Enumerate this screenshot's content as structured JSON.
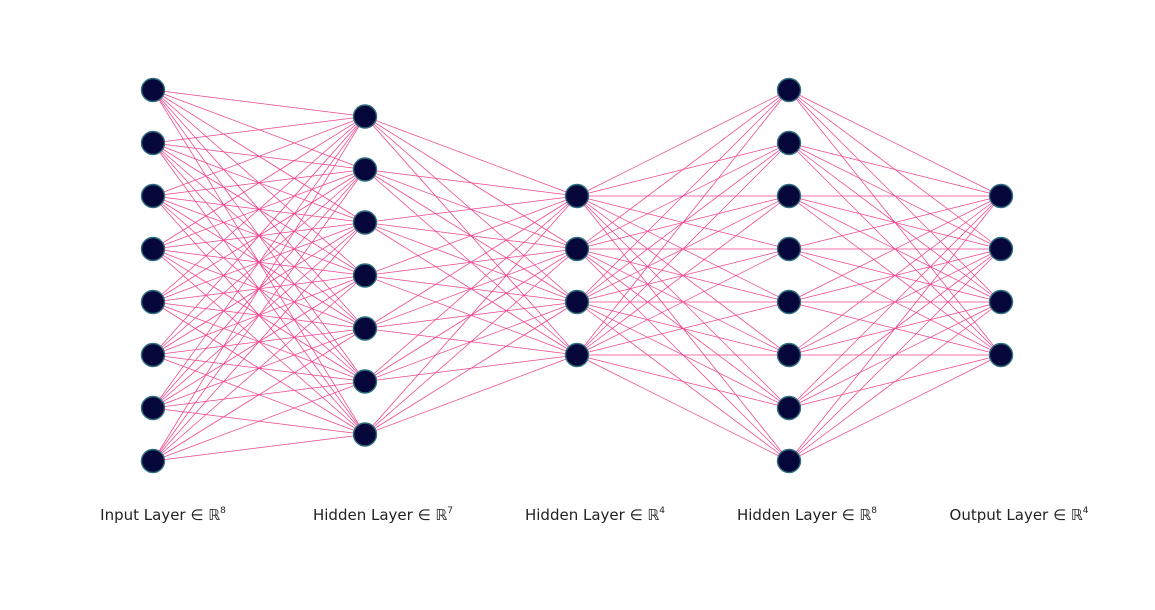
{
  "diagram": {
    "type": "neural-network",
    "colors": {
      "edge": "#f0438f",
      "node_fill": "#05073a",
      "node_stroke": "#2f6f7f",
      "background": "#ffffff"
    },
    "layers": [
      {
        "id": "input",
        "nodes": 8,
        "label": "Input Layer ∈ ℝ",
        "dim": "8"
      },
      {
        "id": "hidden-1",
        "nodes": 7,
        "label": "Hidden Layer ∈ ℝ",
        "dim": "7"
      },
      {
        "id": "hidden-2",
        "nodes": 4,
        "label": "Hidden Layer ∈ ℝ",
        "dim": "4"
      },
      {
        "id": "hidden-3",
        "nodes": 8,
        "label": "Hidden Layer ∈ ℝ",
        "dim": "8"
      },
      {
        "id": "output",
        "nodes": 4,
        "label": "Output Layer ∈ ℝ",
        "dim": "4"
      }
    ]
  }
}
